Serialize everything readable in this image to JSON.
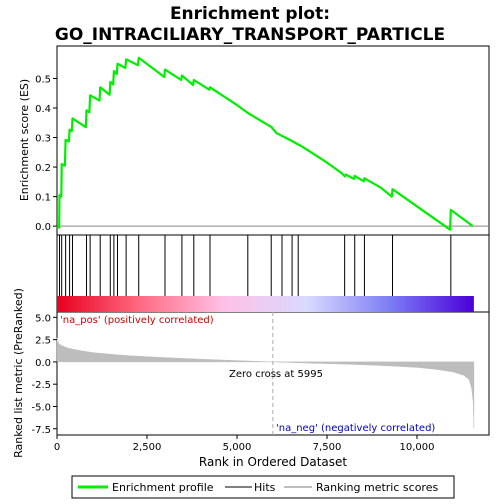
{
  "chart_data": {
    "type": "line",
    "title": "Enrichment plot:\nGO_INTRACILIARY_TRANSPORT_PARTICLE",
    "title_lines": [
      "Enrichment plot:",
      "GO_INTRACILIARY_TRANSPORT_PARTICLE"
    ],
    "xlabel": "Rank in Ordered Dataset",
    "xlim": [
      0,
      12000
    ],
    "x_ticks": [
      0,
      2500,
      5000,
      7500,
      10000
    ],
    "x_tick_labels": [
      "0",
      "2,500",
      "5,000",
      "7,500",
      "10,000"
    ],
    "es_panel": {
      "ylabel": "Enrichment score (ES)",
      "ylim": [
        -0.03,
        0.61
      ],
      "y_ticks": [
        0.0,
        0.1,
        0.2,
        0.3,
        0.4,
        0.5
      ],
      "y_tick_labels": [
        "0.0",
        "0.1",
        "0.2",
        "0.3",
        "0.4",
        "0.5"
      ],
      "series": [
        {
          "name": "Enrichment profile",
          "color": "#00ee00",
          "x": [
            0,
            60,
            70,
            120,
            130,
            220,
            240,
            330,
            350,
            410,
            430,
            800,
            820,
            900,
            920,
            1180,
            1200,
            1460,
            1480,
            1560,
            1580,
            1660,
            1680,
            1900,
            1920,
            2250,
            2270,
            2980,
            3000,
            3450,
            3470,
            3780,
            3800,
            4230,
            4250,
            5000,
            5300,
            5950,
            6100,
            6500,
            6800,
            7500,
            7900,
            8000,
            8020,
            8250,
            8270,
            8520,
            8540,
            9000,
            9300,
            9320,
            10920,
            10940,
            11550
          ],
          "y": [
            0.0,
            -0.005,
            0.105,
            0.1,
            0.21,
            0.205,
            0.292,
            0.287,
            0.327,
            0.322,
            0.365,
            0.335,
            0.392,
            0.385,
            0.443,
            0.425,
            0.47,
            0.445,
            0.488,
            0.48,
            0.525,
            0.515,
            0.55,
            0.535,
            0.565,
            0.545,
            0.57,
            0.505,
            0.53,
            0.495,
            0.51,
            0.478,
            0.495,
            0.462,
            0.47,
            0.41,
            0.383,
            0.336,
            0.315,
            0.29,
            0.27,
            0.215,
            0.18,
            0.168,
            0.175,
            0.16,
            0.17,
            0.152,
            0.162,
            0.13,
            0.1,
            0.125,
            -0.012,
            0.055,
            0.0
          ]
        }
      ]
    },
    "hits_panel": {
      "legend_label": "Hits",
      "hit_ranks": [
        70,
        130,
        240,
        350,
        430,
        820,
        920,
        1200,
        1480,
        1580,
        1680,
        1920,
        2270,
        3000,
        3470,
        3800,
        4250,
        5300,
        5950,
        6250,
        6530,
        6700,
        7990,
        8270,
        8540,
        9320,
        10940
      ],
      "heat_gradient": [
        "#e8001e",
        "#ff6b82",
        "#ffc0e6",
        "#d9d9ff",
        "#7c7cf5",
        "#4a00d8"
      ]
    },
    "metric_panel": {
      "legend_label": "Ranking metric scores",
      "ylabel": "Ranked list metric (PreRanked)",
      "ylim": [
        -8.2,
        5.6
      ],
      "y_ticks": [
        5.0,
        2.5,
        0.0,
        -2.5,
        -5.0,
        -7.5
      ],
      "y_tick_labels": [
        "5.0",
        "2.5",
        "0.0",
        "-2.5",
        "-5.0",
        "-7.5"
      ],
      "fill_color": "#bdbdbd",
      "x": [
        0,
        20,
        60,
        150,
        300,
        600,
        1000,
        1500,
        2000,
        3000,
        4000,
        5000,
        5995,
        7000,
        8000,
        9000,
        10000,
        10500,
        11000,
        11300,
        11450,
        11520,
        11560,
        11580
      ],
      "y": [
        2.7,
        2.3,
        2.0,
        1.8,
        1.55,
        1.3,
        1.05,
        0.85,
        0.7,
        0.48,
        0.3,
        0.15,
        0.0,
        -0.13,
        -0.25,
        -0.4,
        -0.62,
        -0.82,
        -1.12,
        -1.5,
        -2.0,
        -3.0,
        -4.5,
        -7.4
      ],
      "zero_cross_rank": 5995,
      "zero_cross_label": "Zero cross at 5995",
      "pos_label": "'na_pos' (positively correlated)",
      "neg_label": "'na_neg' (negatively correlated)",
      "pos_label_color": "#cc0000",
      "neg_label_color": "#0000cc"
    },
    "grid": false,
    "legend": {
      "placement": "bottom",
      "entries": [
        {
          "label": "Enrichment profile",
          "color": "#00ee00"
        },
        {
          "label": "Hits",
          "color": "#000000"
        },
        {
          "label": "Ranking metric scores",
          "color": "#bdbdbd"
        }
      ]
    }
  }
}
